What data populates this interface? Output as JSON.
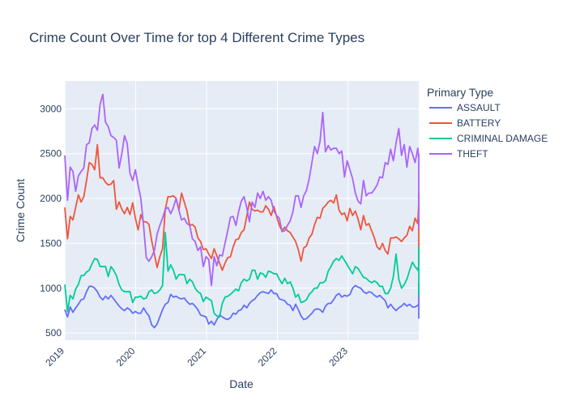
{
  "chart_data": {
    "type": "line",
    "title": "Crime Count Over Time for top 4 Different Crime Types",
    "xlabel": "Date",
    "ylabel": "Crime Count",
    "x_range": [
      "2019-01-01",
      "2023-12-31"
    ],
    "ylim": [
      420,
      3310
    ],
    "y_ticks": [
      500,
      1000,
      1500,
      2000,
      2500,
      3000
    ],
    "x_ticks": [
      {
        "date": "2019-01-01",
        "label": "2019"
      },
      {
        "date": "2020-01-01",
        "label": "2020"
      },
      {
        "date": "2021-01-01",
        "label": "2021"
      },
      {
        "date": "2022-01-01",
        "label": "2022"
      },
      {
        "date": "2023-01-01",
        "label": "2023"
      }
    ],
    "x_start": "2019-01-01",
    "x_step_days": 14,
    "grid": true,
    "legend": {
      "title": "Primary Type",
      "placement": "top-right"
    },
    "series": [
      {
        "name": "ASSAULT",
        "color": "#636efa",
        "values": [
          760,
          680,
          790,
          730,
          780,
          820,
          870,
          880,
          960,
          1020,
          1020,
          1000,
          960,
          900,
          870,
          910,
          880,
          920,
          880,
          840,
          800,
          770,
          750,
          780,
          760,
          720,
          740,
          720,
          720,
          780,
          730,
          690,
          590,
          560,
          600,
          680,
          760,
          820,
          840,
          930,
          900,
          910,
          890,
          880,
          890,
          850,
          820,
          830,
          800,
          760,
          700,
          690,
          680,
          600,
          630,
          590,
          650,
          700,
          680,
          660,
          650,
          670,
          720,
          710,
          750,
          760,
          810,
          780,
          830,
          860,
          880,
          920,
          950,
          960,
          950,
          940,
          980,
          940,
          940,
          880,
          870,
          860,
          820,
          810,
          750,
          820,
          760,
          690,
          650,
          660,
          690,
          720,
          760,
          770,
          760,
          730,
          800,
          830,
          830,
          870,
          920,
          940,
          900,
          920,
          910,
          930,
          1000,
          1030,
          1010,
          1000,
          960,
          940,
          960,
          950,
          920,
          900,
          920,
          890,
          860,
          780,
          820,
          780,
          750,
          780,
          800,
          830,
          800,
          820,
          790,
          790,
          810,
          800,
          850,
          880,
          900,
          930,
          940,
          960,
          920,
          1000,
          1000,
          960,
          1000,
          1020,
          960,
          960,
          1050,
          980,
          940,
          970,
          940,
          920,
          870,
          890,
          840,
          660
        ]
      },
      {
        "name": "BATTERY",
        "color": "#ef553b",
        "values": [
          1900,
          1550,
          1800,
          1760,
          1900,
          2040,
          1960,
          2020,
          2200,
          2400,
          2380,
          2320,
          2600,
          2230,
          2230,
          2180,
          2150,
          2160,
          2200,
          1880,
          1960,
          1880,
          1830,
          1900,
          1820,
          1950,
          1780,
          1650,
          1820,
          1740,
          1740,
          1710,
          1530,
          1380,
          1230,
          1350,
          1440,
          1880,
          2020,
          2020,
          2030,
          2000,
          1870,
          2060,
          1960,
          1860,
          1700,
          1710,
          1680,
          1560,
          1520,
          1430,
          1440,
          1380,
          1330,
          1440,
          1360,
          1280,
          1200,
          1280,
          1340,
          1350,
          1460,
          1540,
          1550,
          1620,
          1650,
          1800,
          1960,
          1880,
          1860,
          1870,
          1850,
          1850,
          1920,
          1880,
          1810,
          1910,
          1800,
          1700,
          1640,
          1680,
          1640,
          1620,
          1570,
          1520,
          1430,
          1300,
          1450,
          1470,
          1560,
          1600,
          1710,
          1790,
          1780,
          1890,
          1920,
          1960,
          1980,
          1950,
          2040,
          1870,
          1820,
          1840,
          1750,
          1890,
          1810,
          1860,
          1770,
          1650,
          1810,
          1700,
          1720,
          1640,
          1560,
          1460,
          1430,
          1500,
          1420,
          1380,
          1560,
          1560,
          1570,
          1550,
          1520,
          1560,
          1590,
          1690,
          1640,
          1780,
          1720,
          1950,
          1840,
          1870,
          1880,
          1830,
          1950,
          1880,
          1920,
          1980,
          1940,
          2040,
          1890,
          1930,
          1880,
          1950,
          1960,
          2040,
          1990,
          2060,
          1930,
          1870,
          1840,
          1800,
          1880,
          1800,
          1700,
          1670,
          1250
        ]
      },
      {
        "name": "CRIMINAL DAMAGE",
        "color": "#00cc96",
        "values": [
          1040,
          740,
          920,
          880,
          990,
          1040,
          1140,
          1140,
          1180,
          1200,
          1270,
          1330,
          1320,
          1240,
          1240,
          1240,
          1130,
          1240,
          1200,
          1140,
          1040,
          980,
          960,
          960,
          960,
          840,
          900,
          900,
          910,
          880,
          890,
          960,
          980,
          940,
          950,
          980,
          1030,
          1620,
          1190,
          1260,
          1200,
          1100,
          1150,
          1150,
          1150,
          1050,
          1100,
          1070,
          1000,
          960,
          940,
          850,
          900,
          880,
          860,
          720,
          690,
          680,
          830,
          900,
          910,
          930,
          960,
          990,
          970,
          1060,
          1100,
          1080,
          1100,
          1200,
          1200,
          1100,
          1170,
          1160,
          1120,
          1190,
          1180,
          1160,
          1160,
          1100,
          1050,
          1110,
          1050,
          1070,
          1000,
          900,
          930,
          840,
          850,
          870,
          930,
          960,
          1000,
          1000,
          1060,
          1060,
          1080,
          1190,
          1240,
          1300,
          1330,
          1310,
          1360,
          1310,
          1260,
          1210,
          1160,
          1240,
          1220,
          1170,
          1120,
          1110,
          1080,
          1060,
          1080,
          1060,
          1020,
          1020,
          940,
          940,
          1000,
          1130,
          1380,
          1100,
          1000,
          1040,
          1100,
          1200,
          1290,
          1240,
          1200,
          1250,
          1260,
          1370,
          1320,
          1310,
          1380,
          1350,
          1250,
          1260,
          1280,
          1460,
          1380,
          1460,
          1330,
          1280,
          1250,
          1220,
          1260,
          1220,
          1290,
          1250,
          1200,
          1150,
          1180,
          920
        ]
      },
      {
        "name": "THEFT",
        "color": "#ab63fa",
        "values": [
          2480,
          1980,
          2350,
          2300,
          2080,
          2250,
          2300,
          2340,
          2600,
          2620,
          2780,
          2820,
          2760,
          3050,
          3160,
          2850,
          2800,
          2700,
          2680,
          2650,
          2340,
          2500,
          2700,
          2610,
          2280,
          2200,
          2320,
          2150,
          2000,
          1700,
          1340,
          1300,
          1350,
          1420,
          1600,
          1700,
          1780,
          1880,
          1900,
          1830,
          1900,
          2000,
          1870,
          1760,
          1780,
          1720,
          1700,
          1550,
          1520,
          1420,
          1460,
          1240,
          1350,
          1320,
          1030,
          1350,
          1250,
          1370,
          1360,
          1500,
          1640,
          1790,
          1800,
          1700,
          1850,
          1970,
          2020,
          1900,
          1740,
          1960,
          1900,
          2060,
          2000,
          2080,
          1980,
          2020,
          1980,
          1860,
          1810,
          1780,
          1630,
          1640,
          1700,
          1750,
          1850,
          2030,
          2030,
          1900,
          2030,
          2090,
          2220,
          2400,
          2580,
          2500,
          2640,
          2960,
          2520,
          2590,
          2540,
          2560,
          2560,
          2500,
          2530,
          2240,
          2420,
          2320,
          2220,
          2060,
          1970,
          1940,
          2200,
          2030,
          2060,
          2060,
          2100,
          2150,
          2240,
          2230,
          2400,
          2380,
          2550,
          2420,
          2620,
          2780,
          2480,
          2600,
          2350,
          2580,
          2500,
          2400,
          2560,
          2440,
          2380,
          2420,
          2400,
          2490,
          1670
        ]
      }
    ]
  }
}
